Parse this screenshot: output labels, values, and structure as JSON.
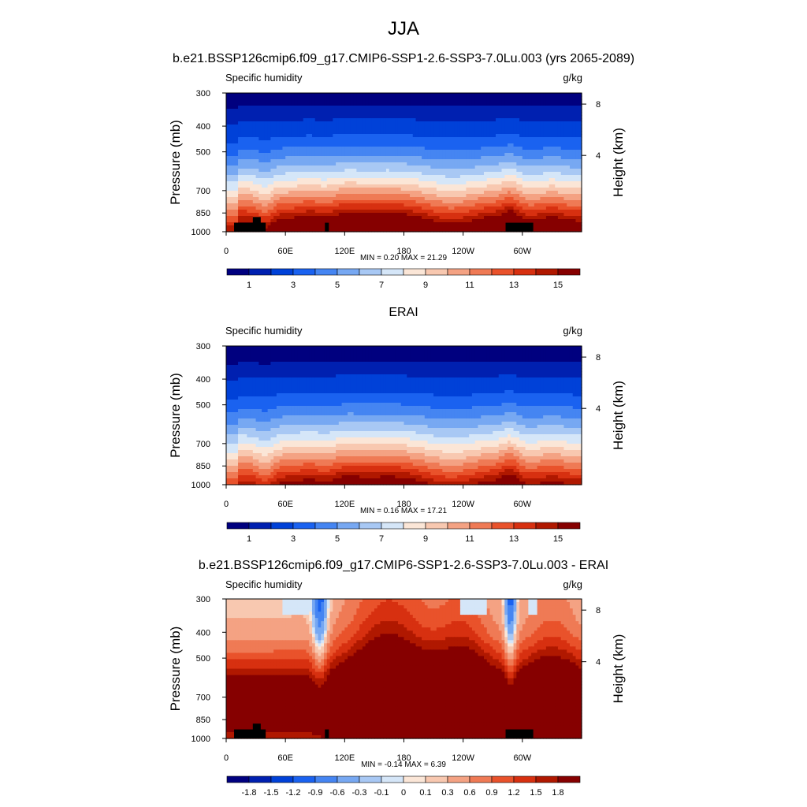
{
  "figure": {
    "title": "JJA"
  },
  "chart_data": [
    {
      "type": "heatmap",
      "title": "b.e21.BSSP126cmip6.f09_g17.CMIP6-SSP1-2.6-SSP3-7.0Lu.003 (yrs 2065-2089)",
      "variable": "Specific humidity",
      "units": "g/kg",
      "ylabel": "Pressure (mb)",
      "ylabel_right": "Height (km)",
      "x_ticks": [
        "0",
        "60E",
        "120E",
        "180",
        "120W",
        "60W"
      ],
      "x_tick_values": [
        0,
        60,
        120,
        180,
        240,
        300
      ],
      "xlim": [
        0,
        360
      ],
      "y_ticks": [
        "300",
        "400",
        "500",
        "700",
        "850",
        "1000"
      ],
      "y_tick_values": [
        300,
        400,
        500,
        700,
        850,
        1000
      ],
      "ylim": [
        1000,
        300
      ],
      "y_scale": "log",
      "right_ticks": [
        "8",
        "4"
      ],
      "right_tick_values": [
        8,
        4
      ],
      "stats": {
        "min": 0.2,
        "max": 21.29
      },
      "stats_text": "MIN =   0.20  MAX =  21.29",
      "colorbar": {
        "labels": [
          "1",
          "3",
          "5",
          "7",
          "9",
          "11",
          "13",
          "15"
        ],
        "levels": [
          0.5,
          1,
          2,
          3,
          4,
          5,
          6,
          7,
          8,
          9,
          10,
          11,
          12,
          13,
          14,
          15
        ],
        "colors": [
          "#00007f",
          "#0020b0",
          "#0041d8",
          "#1a62f0",
          "#4585f2",
          "#77a8f2",
          "#a8c8f4",
          "#d5e6f8",
          "#fbe6d7",
          "#f8c8b0",
          "#f4a283",
          "#ef7a55",
          "#e9522b",
          "#d73010",
          "#b01800",
          "#860000"
        ]
      },
      "field": "future"
    },
    {
      "type": "heatmap",
      "title": "ERAI",
      "variable": "Specific humidity",
      "units": "g/kg",
      "ylabel": "Pressure (mb)",
      "ylabel_right": "Height (km)",
      "x_ticks": [
        "0",
        "60E",
        "120E",
        "180",
        "120W",
        "60W"
      ],
      "x_tick_values": [
        0,
        60,
        120,
        180,
        240,
        300
      ],
      "xlim": [
        0,
        360
      ],
      "y_ticks": [
        "300",
        "400",
        "500",
        "700",
        "850",
        "1000"
      ],
      "y_tick_values": [
        300,
        400,
        500,
        700,
        850,
        1000
      ],
      "ylim": [
        1000,
        300
      ],
      "y_scale": "log",
      "right_ticks": [
        "8",
        "4"
      ],
      "right_tick_values": [
        8,
        4
      ],
      "stats": {
        "min": 0.16,
        "max": 17.21
      },
      "stats_text": "MIN =   0.16  MAX =  17.21",
      "colorbar": {
        "labels": [
          "1",
          "3",
          "5",
          "7",
          "9",
          "11",
          "13",
          "15"
        ],
        "levels": [
          0.5,
          1,
          2,
          3,
          4,
          5,
          6,
          7,
          8,
          9,
          10,
          11,
          12,
          13,
          14,
          15
        ],
        "colors": [
          "#00007f",
          "#0020b0",
          "#0041d8",
          "#1a62f0",
          "#4585f2",
          "#77a8f2",
          "#a8c8f4",
          "#d5e6f8",
          "#fbe6d7",
          "#f8c8b0",
          "#f4a283",
          "#ef7a55",
          "#e9522b",
          "#d73010",
          "#b01800",
          "#860000"
        ]
      },
      "field": "erai"
    },
    {
      "type": "heatmap",
      "title": "b.e21.BSSP126cmip6.f09_g17.CMIP6-SSP1-2.6-SSP3-7.0Lu.003 - ERAI",
      "variable": "Specific humidity",
      "units": "g/kg",
      "ylabel": "Pressure (mb)",
      "ylabel_right": "Height (km)",
      "x_ticks": [
        "0",
        "60E",
        "120E",
        "180",
        "120W",
        "60W"
      ],
      "x_tick_values": [
        0,
        60,
        120,
        180,
        240,
        300
      ],
      "xlim": [
        0,
        360
      ],
      "y_ticks": [
        "300",
        "400",
        "500",
        "700",
        "850",
        "1000"
      ],
      "y_tick_values": [
        300,
        400,
        500,
        700,
        850,
        1000
      ],
      "ylim": [
        1000,
        300
      ],
      "y_scale": "log",
      "right_ticks": [
        "8",
        "4"
      ],
      "right_tick_values": [
        8,
        4
      ],
      "stats": {
        "min": -0.14,
        "max": 6.39
      },
      "stats_text": "MIN =  -0.14  MAX =   6.39",
      "colorbar": {
        "labels": [
          "-1.8",
          "-1.5",
          "-1.2",
          "-0.9",
          "-0.6",
          "-0.3",
          "-0.1",
          "0",
          "0.1",
          "0.3",
          "0.6",
          "0.9",
          "1.2",
          "1.5",
          "1.8"
        ],
        "levels": [
          -1.8,
          -1.5,
          -1.2,
          -0.9,
          -0.6,
          -0.3,
          -0.1,
          0,
          0.1,
          0.3,
          0.6,
          0.9,
          1.2,
          1.5,
          1.8
        ],
        "colors": [
          "#00007f",
          "#0020b0",
          "#0041d8",
          "#1a62f0",
          "#4585f2",
          "#77a8f2",
          "#a8c8f4",
          "#d5e6f8",
          "#fbe6d7",
          "#f8c8b0",
          "#f4a283",
          "#ef7a55",
          "#e9522b",
          "#d73010",
          "#b01800",
          "#860000"
        ]
      },
      "field": "diff"
    }
  ]
}
